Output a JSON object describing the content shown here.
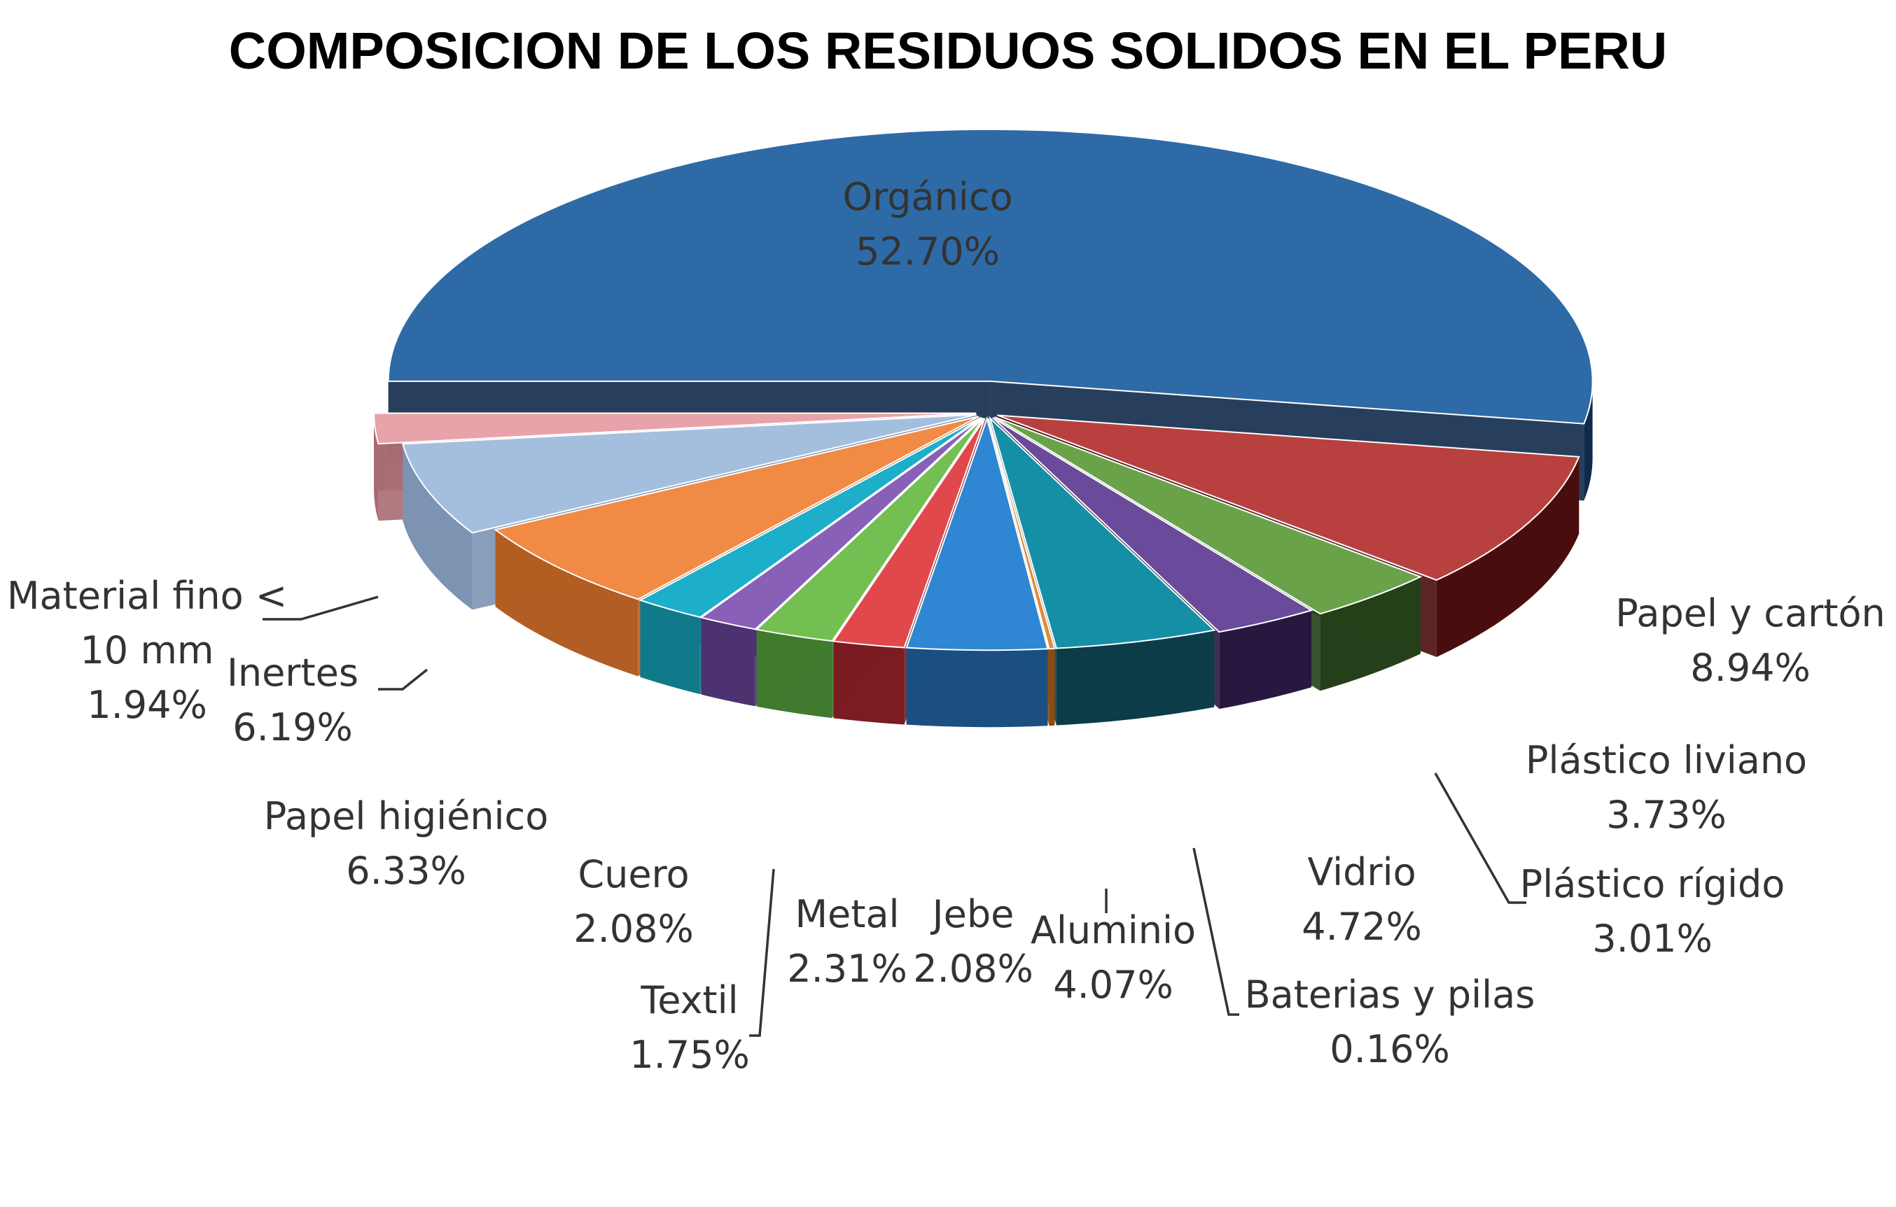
{
  "chart_data": {
    "type": "pie",
    "variant": "3d-exploded",
    "title": "COMPOSICION DE LOS RESIDUOS SOLIDOS EN EL PERU",
    "unit": "%",
    "slices": [
      {
        "name": "Orgánico",
        "value_label": "52.70%",
        "value": 52.7,
        "color": "#2e6aa6",
        "side_color": "#0f2a4a"
      },
      {
        "name": "Papel y cartón",
        "value_label": "8.94%",
        "value": 8.94,
        "color": "#b8403f",
        "side_color": "#4a0d0d"
      },
      {
        "name": "Plástico liviano",
        "value_label": "3.73%",
        "value": 3.73,
        "color": "#6aa24a",
        "side_color": "#24401a"
      },
      {
        "name": "Plástico rígido",
        "value_label": "3.01%",
        "value": 3.01,
        "color": "#6a4a9a",
        "side_color": "#281840"
      },
      {
        "name": "Vidrio",
        "value_label": "4.72%",
        "value": 4.72,
        "color": "#158fa6",
        "side_color": "#0b3c48"
      },
      {
        "name": "Baterias y pilas",
        "value_label": "0.16%",
        "value": 0.16,
        "color": "#e08c34",
        "side_color": "#8c4d12"
      },
      {
        "name": "Aluminio",
        "value_label": "4.07%",
        "value": 4.07,
        "color": "#2f86d2",
        "side_color": "#1b4f82"
      },
      {
        "name": "Jebe",
        "value_label": "2.08%",
        "value": 2.08,
        "color": "#e0484c",
        "side_color": "#7a1c22"
      },
      {
        "name": "Metal",
        "value_label": "2.31%",
        "value": 2.31,
        "color": "#73bf52",
        "side_color": "#3f7a2e"
      },
      {
        "name": "Textil",
        "value_label": "1.75%",
        "value": 1.75,
        "color": "#8860b8",
        "side_color": "#4d3270"
      },
      {
        "name": "Cuero",
        "value_label": "2.08%",
        "value": 2.08,
        "color": "#1dafc9",
        "side_color": "#117a8a"
      },
      {
        "name": "Papel higiénico",
        "value_label": "6.33%",
        "value": 6.33,
        "color": "#f08a44",
        "side_color": "#b25d23"
      },
      {
        "name": "Inertes",
        "value_label": "6.19%",
        "value": 6.19,
        "color": "#a4bede",
        "side_color": "#7c93b2"
      },
      {
        "name": "Material fino <\n10 mm",
        "value_label": "1.94%",
        "value": 1.94,
        "color": "#e8a2aa",
        "side_color": "#a86a72"
      }
    ]
  }
}
